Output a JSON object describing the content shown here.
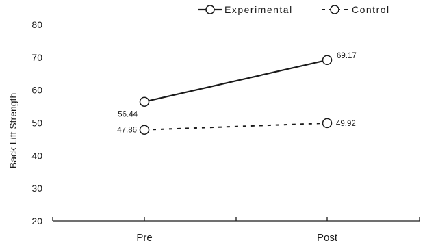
{
  "chart_data": {
    "type": "line",
    "categories": [
      "Pre",
      "Post"
    ],
    "series": [
      {
        "name": "Experimental",
        "values": [
          56.44,
          69.17
        ],
        "line_style": "solid",
        "marker": "open-circle",
        "value_labels": [
          "56.44",
          "69.17"
        ]
      },
      {
        "name": "Control",
        "values": [
          47.86,
          49.92
        ],
        "line_style": "dashed",
        "marker": "open-circle",
        "value_labels": [
          "47.86",
          "49.92"
        ]
      }
    ],
    "title": "",
    "xlabel": "",
    "ylabel": "Back Lift Strength",
    "ylim": [
      20,
      80
    ],
    "yticks": [
      "20",
      "30",
      "40",
      "50",
      "60",
      "70",
      "80"
    ],
    "grid": false,
    "legend_position": "top-right",
    "colors": {
      "line": "#1a1a1a",
      "marker_fill": "#ffffff",
      "background": "#ffffff"
    }
  }
}
